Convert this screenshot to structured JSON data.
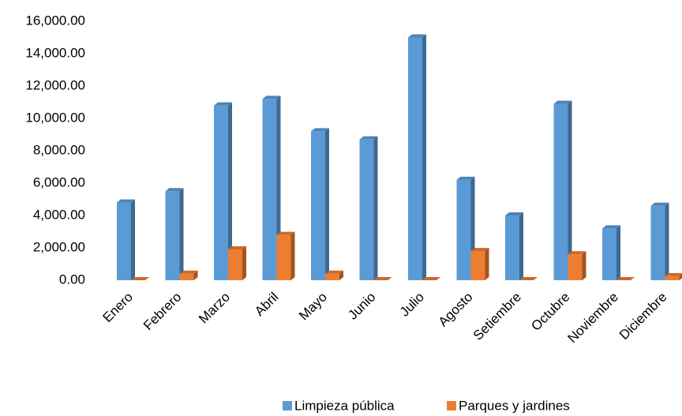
{
  "chart_data": {
    "type": "bar3d",
    "categories": [
      "Enero",
      "Febrero",
      "Marzo",
      "Abril",
      "Mayo",
      "Junio",
      "Julio",
      "Agosto",
      "Setiembre",
      "Octubre",
      "Noviembre",
      "Diciembre"
    ],
    "series": [
      {
        "name": "Limpieza pública",
        "color": "#5b9bd5",
        "values": [
          4800,
          5500,
          10800,
          11200,
          9200,
          8700,
          15000,
          6200,
          4000,
          10900,
          3200,
          4600
        ]
      },
      {
        "name": "Parques y jardines",
        "color": "#ed7d31",
        "values": [
          0,
          400,
          1900,
          2800,
          400,
          0,
          0,
          1800,
          0,
          1600,
          0,
          250
        ]
      }
    ],
    "ylim": [
      0,
      16000
    ],
    "yticks": [
      {
        "value": 0,
        "label": "0.00"
      },
      {
        "value": 2000,
        "label": "2,000.00"
      },
      {
        "value": 4000,
        "label": "4,000.00"
      },
      {
        "value": 6000,
        "label": "6,000.00"
      },
      {
        "value": 8000,
        "label": "8,000.00"
      },
      {
        "value": 10000,
        "label": "10,000.00"
      },
      {
        "value": 12000,
        "label": "12,000.00"
      },
      {
        "value": 14000,
        "label": "14,000.00"
      },
      {
        "value": 16000,
        "label": "16,000.00"
      }
    ],
    "grid": false
  }
}
